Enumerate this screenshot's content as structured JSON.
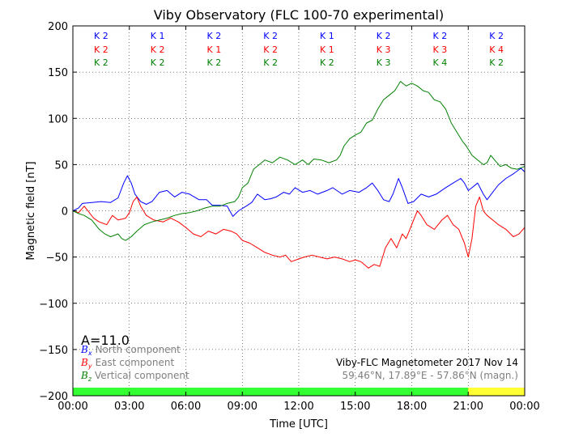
{
  "title": "Viby Observatory (FLC 100-70 experimental)",
  "xlabel": "Time [UTC]",
  "ylabel": "Magnetic field [nT]",
  "a_index": "A=11.0",
  "info": {
    "line1": "Viby-FLC Magnetometer 2017 Nov 14",
    "line2": "59.46°N, 17.89°E - 57.86°N (magn.)"
  },
  "legend": [
    {
      "symbol": "B",
      "sub": "x",
      "label": "North component",
      "color": "#0000ff"
    },
    {
      "symbol": "B",
      "sub": "y",
      "label": "East component",
      "color": "#ff0000"
    },
    {
      "symbol": "B",
      "sub": "z",
      "label": "Vertical component",
      "color": "#008000"
    }
  ],
  "k_indices": {
    "x": [
      "K 2",
      "K 1",
      "K 2",
      "K 2",
      "K 1",
      "K 2",
      "K 2",
      "K 2"
    ],
    "y": [
      "K 2",
      "K 2",
      "K 1",
      "K 2",
      "K 1",
      "K 3",
      "K 3",
      "K 4"
    ],
    "z": [
      "K 2",
      "K 2",
      "K 2",
      "K 2",
      "K 2",
      "K 3",
      "K 4",
      "K 2"
    ]
  },
  "activity_bar": [
    {
      "from": 0,
      "to": 21,
      "color": "#33ff33"
    },
    {
      "from": 21,
      "to": 24,
      "color": "#ffff33"
    }
  ],
  "chart_data": {
    "type": "line",
    "title": "Viby Observatory (FLC 100-70 experimental)",
    "xlabel": "Time [UTC]",
    "ylabel": "Magnetic field [nT]",
    "x_unit": "hours UTC",
    "xlim": [
      0,
      24
    ],
    "ylim": [
      -200,
      200
    ],
    "xticks": [
      0,
      3,
      6,
      9,
      12,
      15,
      18,
      21,
      24
    ],
    "xtick_labels": [
      "00:00",
      "03:00",
      "06:00",
      "09:00",
      "12:00",
      "15:00",
      "18:00",
      "21:00",
      "00:00"
    ],
    "yticks": [
      -200,
      -150,
      -100,
      -50,
      0,
      50,
      100,
      150,
      200
    ],
    "ytick_labels": [
      "−200",
      "−150",
      "−100",
      "−50",
      "0",
      "50",
      "100",
      "150",
      "200"
    ],
    "grid": true,
    "series": [
      {
        "name": "North component",
        "color": "#0000ff",
        "points": [
          [
            0,
            0
          ],
          [
            0.3,
            3
          ],
          [
            0.5,
            8
          ],
          [
            1.0,
            9
          ],
          [
            1.5,
            10
          ],
          [
            2.0,
            9
          ],
          [
            2.4,
            14
          ],
          [
            2.7,
            30
          ],
          [
            2.9,
            38
          ],
          [
            3.1,
            30
          ],
          [
            3.3,
            18
          ],
          [
            3.6,
            10
          ],
          [
            3.9,
            7
          ],
          [
            4.2,
            10
          ],
          [
            4.6,
            20
          ],
          [
            5.0,
            22
          ],
          [
            5.4,
            15
          ],
          [
            5.8,
            20
          ],
          [
            6.2,
            18
          ],
          [
            6.7,
            12
          ],
          [
            7.1,
            12
          ],
          [
            7.4,
            6
          ],
          [
            7.8,
            6
          ],
          [
            8.2,
            5
          ],
          [
            8.5,
            -6
          ],
          [
            8.8,
            0
          ],
          [
            9.2,
            5
          ],
          [
            9.5,
            9
          ],
          [
            9.8,
            18
          ],
          [
            10.2,
            12
          ],
          [
            10.5,
            13
          ],
          [
            10.8,
            15
          ],
          [
            11.2,
            20
          ],
          [
            11.5,
            18
          ],
          [
            11.8,
            25
          ],
          [
            12.2,
            20
          ],
          [
            12.6,
            22
          ],
          [
            13.0,
            18
          ],
          [
            13.5,
            22
          ],
          [
            13.8,
            25
          ],
          [
            14.3,
            18
          ],
          [
            14.7,
            22
          ],
          [
            15.2,
            20
          ],
          [
            15.6,
            25
          ],
          [
            15.9,
            30
          ],
          [
            16.2,
            22
          ],
          [
            16.5,
            12
          ],
          [
            16.8,
            10
          ],
          [
            17.0,
            18
          ],
          [
            17.3,
            35
          ],
          [
            17.5,
            25
          ],
          [
            17.8,
            8
          ],
          [
            18.1,
            10
          ],
          [
            18.5,
            18
          ],
          [
            18.9,
            15
          ],
          [
            19.3,
            18
          ],
          [
            19.8,
            25
          ],
          [
            20.2,
            30
          ],
          [
            20.6,
            35
          ],
          [
            20.8,
            30
          ],
          [
            21.0,
            22
          ],
          [
            21.2,
            25
          ],
          [
            21.5,
            30
          ],
          [
            21.8,
            18
          ],
          [
            22.0,
            12
          ],
          [
            22.3,
            20
          ],
          [
            22.6,
            28
          ],
          [
            23.0,
            35
          ],
          [
            23.4,
            40
          ],
          [
            23.8,
            46
          ],
          [
            24.0,
            42
          ]
        ]
      },
      {
        "name": "East component",
        "color": "#ff0000",
        "points": [
          [
            0,
            0
          ],
          [
            0.3,
            -2
          ],
          [
            0.6,
            5
          ],
          [
            0.8,
            0
          ],
          [
            1.1,
            -8
          ],
          [
            1.4,
            -12
          ],
          [
            1.8,
            -15
          ],
          [
            2.1,
            -5
          ],
          [
            2.4,
            -10
          ],
          [
            2.8,
            -8
          ],
          [
            3.0,
            -2
          ],
          [
            3.2,
            10
          ],
          [
            3.4,
            15
          ],
          [
            3.6,
            5
          ],
          [
            3.9,
            -5
          ],
          [
            4.3,
            -10
          ],
          [
            4.8,
            -12
          ],
          [
            5.2,
            -8
          ],
          [
            5.6,
            -12
          ],
          [
            6.0,
            -18
          ],
          [
            6.4,
            -25
          ],
          [
            6.8,
            -28
          ],
          [
            7.2,
            -22
          ],
          [
            7.6,
            -25
          ],
          [
            8.0,
            -20
          ],
          [
            8.4,
            -22
          ],
          [
            8.7,
            -25
          ],
          [
            9.0,
            -32
          ],
          [
            9.4,
            -35
          ],
          [
            9.8,
            -40
          ],
          [
            10.2,
            -45
          ],
          [
            10.6,
            -48
          ],
          [
            11.0,
            -50
          ],
          [
            11.3,
            -48
          ],
          [
            11.6,
            -55
          ],
          [
            12.0,
            -52
          ],
          [
            12.3,
            -50
          ],
          [
            12.7,
            -48
          ],
          [
            13.1,
            -50
          ],
          [
            13.5,
            -52
          ],
          [
            13.9,
            -50
          ],
          [
            14.3,
            -52
          ],
          [
            14.7,
            -55
          ],
          [
            15.0,
            -53
          ],
          [
            15.3,
            -55
          ],
          [
            15.7,
            -62
          ],
          [
            16.0,
            -58
          ],
          [
            16.3,
            -60
          ],
          [
            16.6,
            -40
          ],
          [
            16.9,
            -30
          ],
          [
            17.2,
            -40
          ],
          [
            17.5,
            -25
          ],
          [
            17.7,
            -30
          ],
          [
            17.9,
            -20
          ],
          [
            18.1,
            -10
          ],
          [
            18.3,
            0
          ],
          [
            18.5,
            -5
          ],
          [
            18.8,
            -15
          ],
          [
            19.2,
            -20
          ],
          [
            19.6,
            -10
          ],
          [
            19.9,
            -5
          ],
          [
            20.2,
            -15
          ],
          [
            20.5,
            -20
          ],
          [
            20.8,
            -35
          ],
          [
            21.0,
            -50
          ],
          [
            21.2,
            -30
          ],
          [
            21.4,
            5
          ],
          [
            21.6,
            15
          ],
          [
            21.8,
            0
          ],
          [
            22.0,
            -5
          ],
          [
            22.3,
            -10
          ],
          [
            22.6,
            -15
          ],
          [
            23.0,
            -20
          ],
          [
            23.4,
            -28
          ],
          [
            23.7,
            -25
          ],
          [
            24.0,
            -18
          ]
        ]
      },
      {
        "name": "Vertical component",
        "color": "#008000",
        "points": [
          [
            0,
            0
          ],
          [
            0.3,
            -3
          ],
          [
            0.6,
            -5
          ],
          [
            1.0,
            -10
          ],
          [
            1.4,
            -20
          ],
          [
            1.7,
            -25
          ],
          [
            2.0,
            -28
          ],
          [
            2.4,
            -25
          ],
          [
            2.6,
            -30
          ],
          [
            2.8,
            -32
          ],
          [
            3.1,
            -28
          ],
          [
            3.4,
            -22
          ],
          [
            3.8,
            -15
          ],
          [
            4.2,
            -12
          ],
          [
            4.6,
            -10
          ],
          [
            5.0,
            -8
          ],
          [
            5.4,
            -5
          ],
          [
            5.8,
            -3
          ],
          [
            6.2,
            -2
          ],
          [
            6.6,
            0
          ],
          [
            7.0,
            3
          ],
          [
            7.4,
            5
          ],
          [
            7.8,
            5
          ],
          [
            8.2,
            8
          ],
          [
            8.6,
            10
          ],
          [
            8.8,
            15
          ],
          [
            9.0,
            25
          ],
          [
            9.3,
            30
          ],
          [
            9.6,
            45
          ],
          [
            9.9,
            50
          ],
          [
            10.2,
            55
          ],
          [
            10.6,
            52
          ],
          [
            11.0,
            58
          ],
          [
            11.4,
            55
          ],
          [
            11.8,
            50
          ],
          [
            12.2,
            55
          ],
          [
            12.5,
            50
          ],
          [
            12.8,
            56
          ],
          [
            13.2,
            55
          ],
          [
            13.6,
            52
          ],
          [
            14.0,
            55
          ],
          [
            14.2,
            60
          ],
          [
            14.4,
            70
          ],
          [
            14.7,
            78
          ],
          [
            15.0,
            82
          ],
          [
            15.3,
            85
          ],
          [
            15.6,
            95
          ],
          [
            15.9,
            98
          ],
          [
            16.2,
            110
          ],
          [
            16.5,
            120
          ],
          [
            16.8,
            125
          ],
          [
            17.1,
            130
          ],
          [
            17.4,
            140
          ],
          [
            17.7,
            135
          ],
          [
            18.0,
            138
          ],
          [
            18.3,
            135
          ],
          [
            18.6,
            130
          ],
          [
            18.9,
            128
          ],
          [
            19.2,
            120
          ],
          [
            19.5,
            118
          ],
          [
            19.8,
            110
          ],
          [
            20.1,
            95
          ],
          [
            20.4,
            85
          ],
          [
            20.7,
            75
          ],
          [
            20.9,
            70
          ],
          [
            21.2,
            60
          ],
          [
            21.5,
            55
          ],
          [
            21.8,
            50
          ],
          [
            22.0,
            52
          ],
          [
            22.2,
            60
          ],
          [
            22.4,
            55
          ],
          [
            22.7,
            48
          ],
          [
            23.0,
            50
          ],
          [
            23.3,
            46
          ],
          [
            23.6,
            45
          ],
          [
            24.0,
            48
          ]
        ]
      }
    ]
  }
}
